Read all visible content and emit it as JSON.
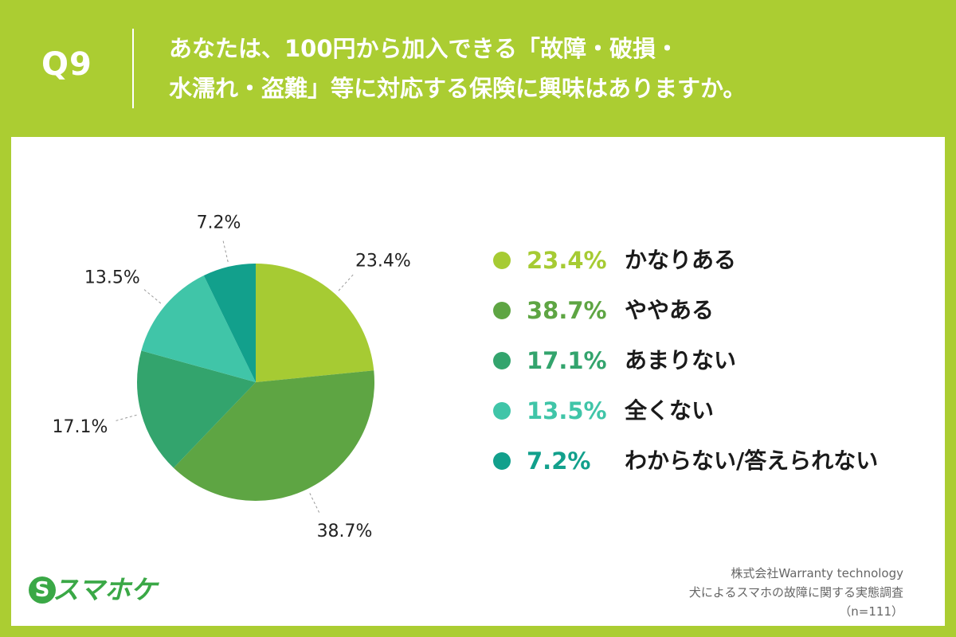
{
  "header": {
    "question_number": "Q9",
    "question_line1": "あなたは、100円から加入できる「故障・破損・",
    "question_line2": "水濡れ・盗難」等に対応する保険に興味はありますか。"
  },
  "chart_data": {
    "type": "pie",
    "title": "",
    "slices": [
      {
        "label": "かなりある",
        "value": 23.4,
        "display": "23.4%",
        "color": "#a6cb33"
      },
      {
        "label": "ややある",
        "value": 38.7,
        "display": "38.7%",
        "color": "#5ea543"
      },
      {
        "label": "あまりない",
        "value": 17.1,
        "display": "17.1%",
        "color": "#33a46d"
      },
      {
        "label": "全くない",
        "value": 13.5,
        "display": "13.5%",
        "color": "#40c5a8"
      },
      {
        "label": "わからない/答えられない",
        "value": 7.2,
        "display": "7.2%",
        "color": "#12a08c"
      }
    ],
    "legend_position": "right",
    "start_angle": "12 o'clock",
    "direction": "clockwise"
  },
  "brand": {
    "logo_mark": "S",
    "logo_text": "スマホケ",
    "color": "#3aa846"
  },
  "source": {
    "line1": "株式会社Warranty technology",
    "line2": "犬によるスマホの故障に関する実態調査",
    "line3": "（n=111）"
  },
  "colors": {
    "background": "#abcd32",
    "panel": "#ffffff"
  }
}
